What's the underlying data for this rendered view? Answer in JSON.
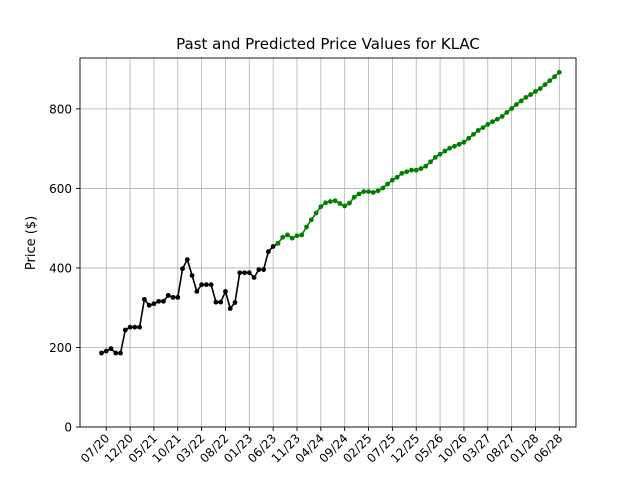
{
  "chart_data": {
    "type": "line",
    "title": "Past and Predicted Price Values for KLAC",
    "xlabel": "",
    "ylabel": "Price ($)",
    "ylim": [
      0,
      928
    ],
    "xlim": [
      -4.5,
      99.5
    ],
    "grid": true,
    "legend": "none",
    "x_ticks": [
      {
        "x": 1,
        "label": "07/20"
      },
      {
        "x": 6,
        "label": "12/20"
      },
      {
        "x": 11,
        "label": "05/21"
      },
      {
        "x": 16,
        "label": "10/21"
      },
      {
        "x": 21,
        "label": "03/22"
      },
      {
        "x": 26,
        "label": "08/22"
      },
      {
        "x": 31,
        "label": "01/23"
      },
      {
        "x": 36,
        "label": "06/23"
      },
      {
        "x": 41,
        "label": "11/23"
      },
      {
        "x": 46,
        "label": "04/24"
      },
      {
        "x": 51,
        "label": "09/24"
      },
      {
        "x": 56,
        "label": "02/25"
      },
      {
        "x": 61,
        "label": "07/25"
      },
      {
        "x": 66,
        "label": "12/25"
      },
      {
        "x": 71,
        "label": "05/26"
      },
      {
        "x": 76,
        "label": "10/26"
      },
      {
        "x": 81,
        "label": "03/27"
      },
      {
        "x": 86,
        "label": "08/27"
      },
      {
        "x": 91,
        "label": "01/28"
      },
      {
        "x": 96,
        "label": "06/28"
      }
    ],
    "y_ticks": [
      0,
      200,
      400,
      600,
      800
    ],
    "series": [
      {
        "name": "Past",
        "color": "#000000",
        "x_start": 0,
        "values": [
          186,
          191,
          197,
          186,
          186,
          244,
          251,
          251,
          251,
          321,
          306,
          310,
          316,
          316,
          331,
          326,
          326,
          398,
          421,
          381,
          341,
          358,
          358,
          358,
          314,
          314,
          341,
          298,
          313,
          388,
          388,
          388,
          376,
          396,
          396,
          441,
          454,
          462
        ]
      },
      {
        "name": "Predicted",
        "color": "#008000",
        "x_start": 37,
        "values": [
          462,
          477,
          483,
          475,
          481,
          483,
          503,
          521,
          538,
          554,
          564,
          567,
          569,
          562,
          556,
          563,
          578,
          586,
          592,
          592,
          590,
          594,
          601,
          611,
          621,
          628,
          638,
          642,
          646,
          646,
          650,
          656,
          667,
          678,
          686,
          694,
          701,
          706,
          711,
          716,
          726,
          736,
          746,
          753,
          761,
          768,
          774,
          781,
          791,
          801,
          811,
          820,
          829,
          836,
          844,
          851,
          861,
          871,
          881,
          892
        ]
      }
    ]
  }
}
